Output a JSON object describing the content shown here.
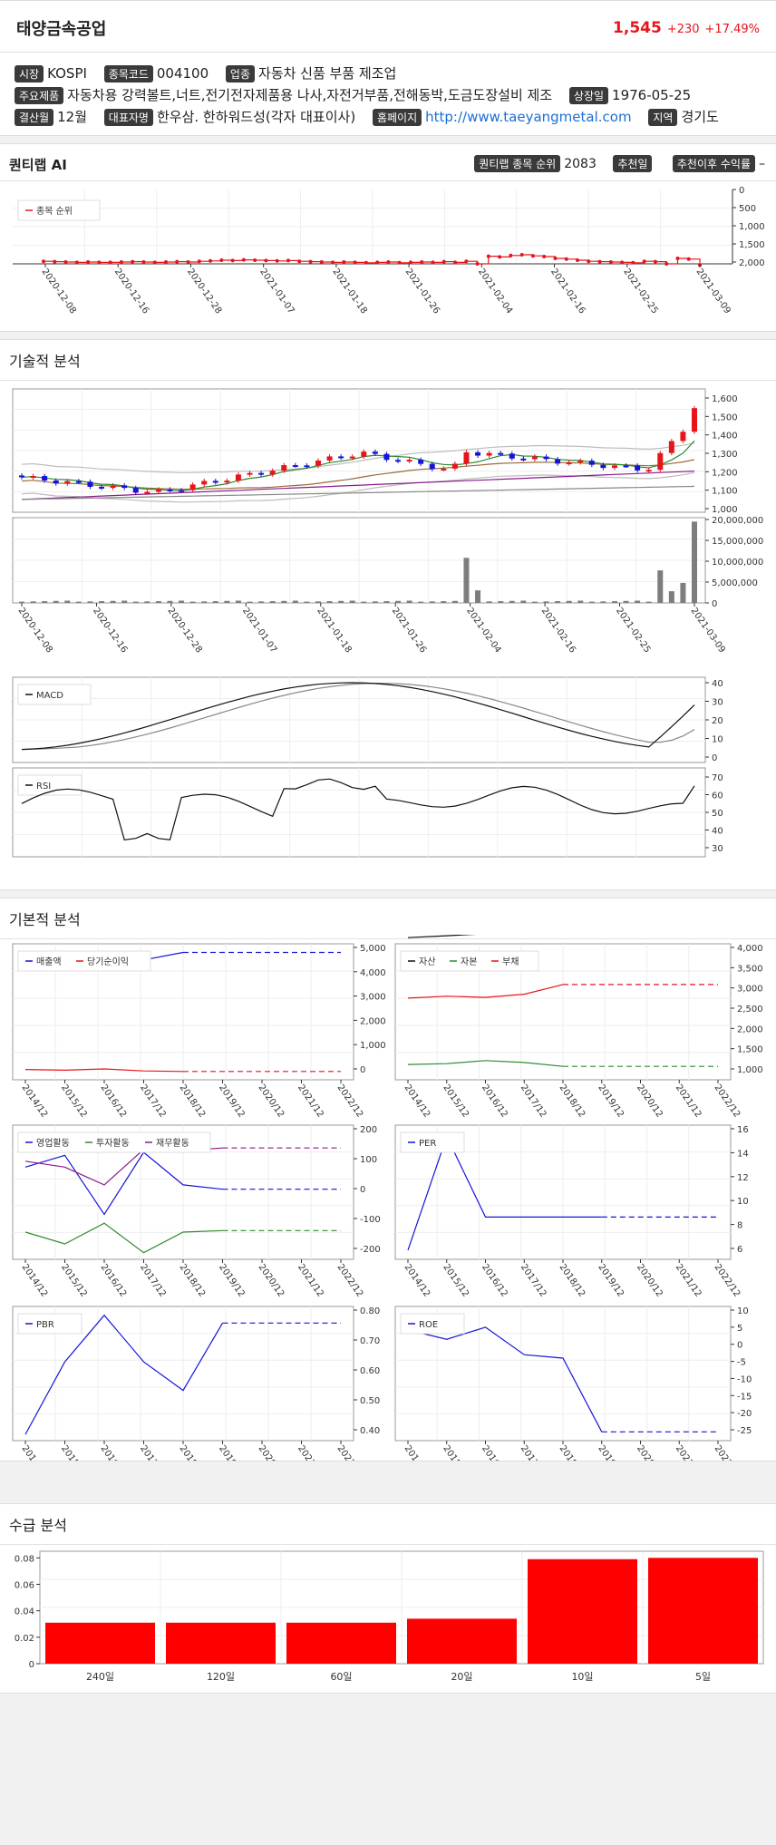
{
  "header": {
    "name": "태양금속공업",
    "price": "1,545",
    "change": "+230",
    "change_pct": "+17.49%"
  },
  "info": {
    "market_label": "시장",
    "market": "KOSPI",
    "code_label": "종목코드",
    "code": "004100",
    "industry_label": "업종",
    "industry": "자동차 신품 부품 제조업",
    "products_label": "주요제품",
    "products": "자동차용 강력볼트,너트,전기전자제품용 나사,자전거부품,전해동박,도금도장설비 제조",
    "listed_label": "상장일",
    "listed": "1976-05-25",
    "fiscal_label": "결산월",
    "fiscal": "12월",
    "ceo_label": "대표자명",
    "ceo": "한우삼. 한하워드성(각자 대표이사)",
    "homepage_label": "홈페이지",
    "homepage": "http://www.taeyangmetal.com",
    "region_label": "지역",
    "region": "경기도"
  },
  "quantilab": {
    "title": "퀀티랩 AI",
    "rank_label": "퀀티랩 종목 순위",
    "rank": "2083",
    "rec_date_label": "추천일",
    "rec_date": "",
    "rec_return_label": "추천이후 수익률",
    "rec_return": "–",
    "legend": "종목 순위",
    "y_ticks": [
      "0",
      "500",
      "1,000",
      "1,500",
      "2,000"
    ]
  },
  "dates": [
    "2020-12-08",
    "2020-12-16",
    "2020-12-28",
    "2021-01-07",
    "2021-01-18",
    "2021-01-26",
    "2021-02-04",
    "2021-02-16",
    "2021-02-25",
    "2021-03-09"
  ],
  "technical": {
    "title": "기술적 분석",
    "price_ticks": [
      "1,600",
      "1,500",
      "1,400",
      "1,300",
      "1,200",
      "1,100",
      "1,000"
    ],
    "volume_ticks": [
      "20,000,000",
      "15,000,000",
      "10,000,000",
      "5,000,000",
      "0"
    ],
    "macd_label": "MACD",
    "macd_ticks": [
      "40",
      "30",
      "20",
      "10",
      "0"
    ],
    "rsi_label": "RSI",
    "rsi_ticks": [
      "70",
      "60",
      "50",
      "40",
      "30"
    ]
  },
  "fundamental": {
    "title": "기본적 분석",
    "years": [
      "2014/12",
      "2015/12",
      "2016/12",
      "2017/12",
      "2018/12",
      "2019/12",
      "2020/12",
      "2021/12",
      "2022/12"
    ],
    "c1": {
      "legend": [
        "매출액",
        "당기순이익"
      ],
      "ticks": [
        "5,000",
        "4,000",
        "3,000",
        "2,000",
        "1,000",
        "0"
      ]
    },
    "c2": {
      "legend": [
        "자산",
        "자본",
        "부채"
      ],
      "ticks": [
        "4,000",
        "3,500",
        "3,000",
        "2,500",
        "2,000",
        "1,500",
        "1,000"
      ]
    },
    "c3": {
      "legend": [
        "영업활동",
        "투자활동",
        "재무활동"
      ],
      "ticks": [
        "200",
        "100",
        "0",
        "-100",
        "-200"
      ]
    },
    "c4": {
      "legend": [
        "PER"
      ],
      "ticks": [
        "16",
        "14",
        "12",
        "10",
        "8",
        "6"
      ]
    },
    "c5": {
      "legend": [
        "PBR"
      ],
      "ticks": [
        "0.80",
        "0.70",
        "0.60",
        "0.50",
        "0.40"
      ]
    },
    "c6": {
      "legend": [
        "ROE"
      ],
      "ticks": [
        "10",
        "5",
        "0",
        "-5",
        "-10",
        "-15",
        "-20",
        "-25"
      ]
    }
  },
  "supply": {
    "title": "수급 분석"
  },
  "colors": {
    "up": "#e8141b",
    "down": "#1414d8",
    "accent": "#e8141b"
  },
  "chart_data": [
    {
      "type": "line",
      "name": "quantilab-rank",
      "series": [
        {
          "name": "종목 순위",
          "values": [
            1980,
            1990,
            2000,
            2010,
            2000,
            2010,
            2010,
            2000,
            1990,
            2000,
            2010,
            2000,
            1990,
            2000,
            1980,
            1970,
            1950,
            1960,
            1940,
            1950,
            1960,
            1970,
            1960,
            1980,
            1990,
            2000,
            2010,
            2000,
            2010,
            2020,
            2010,
            2000,
            2020,
            2010,
            2000,
            2010,
            1990,
            2010,
            1980,
            2050,
            1840,
            1860,
            1820,
            1800,
            1830,
            1850,
            1900,
            1920,
            1950,
            1980,
            1990,
            2000,
            2010,
            2020,
            1980,
            1990,
            2050,
            1900,
            1920,
            2083
          ]
        }
      ],
      "ylim": [
        0,
        2000
      ]
    },
    {
      "type": "bar",
      "name": "supply",
      "categories": [
        "240일",
        "120일",
        "60일",
        "20일",
        "10일",
        "5일"
      ],
      "values": [
        0.031,
        0.031,
        0.031,
        0.034,
        0.079,
        0.08
      ],
      "y_ticks": [
        "0.08",
        "0.06",
        "0.04",
        "0.02",
        "0"
      ],
      "ylim": [
        0,
        0.085
      ]
    }
  ]
}
